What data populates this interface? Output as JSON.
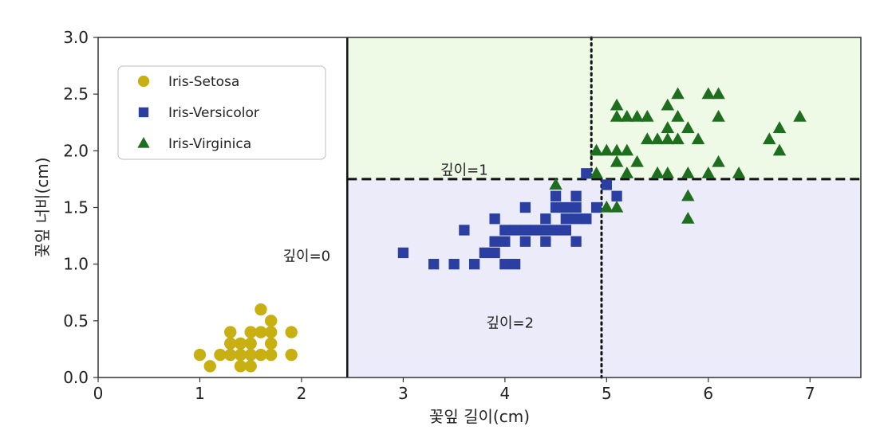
{
  "chart_data": {
    "type": "scatter",
    "xlabel": "꽃잎 길이(cm)",
    "ylabel": "꽃잎 너비(cm)",
    "xlim": [
      0,
      7.5
    ],
    "ylim": [
      0,
      3.0
    ],
    "xticks": [
      0,
      1,
      2,
      3,
      4,
      5,
      6,
      7
    ],
    "yticks": [
      0.0,
      0.5,
      1.0,
      1.5,
      2.0,
      2.5,
      3.0
    ],
    "x_tick_labels": [
      "0",
      "1",
      "2",
      "3",
      "4",
      "5",
      "6",
      "7"
    ],
    "y_tick_labels": [
      "0.0",
      "0.5",
      "1.0",
      "1.5",
      "2.0",
      "2.5",
      "3.0"
    ],
    "grid": false,
    "legend_position": "top-left",
    "regions": [
      {
        "x": [
          0,
          2.45
        ],
        "y": [
          0,
          3.0
        ],
        "color": "#ffffff"
      },
      {
        "x": [
          2.45,
          7.5
        ],
        "y": [
          1.75,
          3.0
        ],
        "color": "#eefae6"
      },
      {
        "x": [
          2.45,
          7.5
        ],
        "y": [
          0,
          1.75
        ],
        "color": "#ecebf9"
      }
    ],
    "boundaries": [
      {
        "orientation": "vertical",
        "value": 2.45,
        "y_range": [
          0,
          3.0
        ],
        "style": "solid"
      },
      {
        "orientation": "horizontal",
        "value": 1.75,
        "x_range": [
          2.45,
          7.5
        ],
        "style": "dashed"
      },
      {
        "orientation": "vertical",
        "value": 4.85,
        "y_range": [
          1.75,
          3.0
        ],
        "style": "dotted"
      },
      {
        "orientation": "vertical",
        "value": 4.95,
        "y_range": [
          0,
          1.75
        ],
        "style": "dotted"
      }
    ],
    "annotations": [
      {
        "text": "깊이=0",
        "x": 2.05,
        "y": 1.07
      },
      {
        "text": "깊이=1",
        "x": 3.6,
        "y": 1.83
      },
      {
        "text": "깊이=2",
        "x": 4.05,
        "y": 0.48
      }
    ],
    "series": [
      {
        "name": "Iris-Setosa",
        "marker": "circle",
        "color": "#c8b012",
        "points": [
          [
            1.0,
            0.2
          ],
          [
            1.1,
            0.1
          ],
          [
            1.2,
            0.2
          ],
          [
            1.3,
            0.2
          ],
          [
            1.3,
            0.3
          ],
          [
            1.3,
            0.4
          ],
          [
            1.4,
            0.1
          ],
          [
            1.4,
            0.2
          ],
          [
            1.4,
            0.3
          ],
          [
            1.5,
            0.1
          ],
          [
            1.5,
            0.2
          ],
          [
            1.5,
            0.3
          ],
          [
            1.5,
            0.4
          ],
          [
            1.6,
            0.2
          ],
          [
            1.6,
            0.4
          ],
          [
            1.6,
            0.6
          ],
          [
            1.7,
            0.2
          ],
          [
            1.7,
            0.3
          ],
          [
            1.7,
            0.4
          ],
          [
            1.7,
            0.5
          ],
          [
            1.9,
            0.2
          ],
          [
            1.9,
            0.4
          ]
        ]
      },
      {
        "name": "Iris-Versicolor",
        "marker": "square",
        "color": "#2b3fa3",
        "points": [
          [
            3.0,
            1.1
          ],
          [
            3.3,
            1.0
          ],
          [
            3.5,
            1.0
          ],
          [
            3.6,
            1.3
          ],
          [
            3.7,
            1.0
          ],
          [
            3.8,
            1.1
          ],
          [
            3.9,
            1.1
          ],
          [
            3.9,
            1.2
          ],
          [
            3.9,
            1.4
          ],
          [
            4.0,
            1.0
          ],
          [
            4.0,
            1.2
          ],
          [
            4.0,
            1.3
          ],
          [
            4.1,
            1.0
          ],
          [
            4.1,
            1.3
          ],
          [
            4.2,
            1.2
          ],
          [
            4.2,
            1.3
          ],
          [
            4.2,
            1.5
          ],
          [
            4.3,
            1.3
          ],
          [
            4.4,
            1.2
          ],
          [
            4.4,
            1.3
          ],
          [
            4.4,
            1.4
          ],
          [
            4.5,
            1.3
          ],
          [
            4.5,
            1.5
          ],
          [
            4.6,
            1.3
          ],
          [
            4.6,
            1.4
          ],
          [
            4.6,
            1.5
          ],
          [
            4.7,
            1.2
          ],
          [
            4.7,
            1.4
          ],
          [
            4.7,
            1.5
          ],
          [
            4.8,
            1.4
          ],
          [
            4.9,
            1.5
          ],
          [
            4.8,
            1.8
          ],
          [
            5.0,
            1.7
          ],
          [
            5.1,
            1.6
          ],
          [
            4.5,
            1.6
          ],
          [
            4.7,
            1.6
          ]
        ]
      },
      {
        "name": "Iris-Virginica",
        "marker": "triangle",
        "color": "#1f6e1f",
        "points": [
          [
            4.5,
            1.7
          ],
          [
            4.9,
            1.8
          ],
          [
            4.9,
            2.0
          ],
          [
            5.0,
            1.5
          ],
          [
            5.0,
            2.0
          ],
          [
            5.1,
            1.5
          ],
          [
            5.1,
            1.9
          ],
          [
            5.1,
            2.0
          ],
          [
            5.1,
            2.3
          ],
          [
            5.1,
            2.4
          ],
          [
            5.2,
            2.0
          ],
          [
            5.2,
            2.3
          ],
          [
            5.3,
            1.9
          ],
          [
            5.3,
            2.3
          ],
          [
            5.4,
            2.1
          ],
          [
            5.4,
            2.3
          ],
          [
            5.5,
            1.8
          ],
          [
            5.5,
            2.1
          ],
          [
            5.6,
            1.8
          ],
          [
            5.6,
            2.1
          ],
          [
            5.6,
            2.2
          ],
          [
            5.6,
            2.4
          ],
          [
            5.7,
            2.3
          ],
          [
            5.7,
            2.5
          ],
          [
            5.8,
            1.4
          ],
          [
            5.8,
            1.8
          ],
          [
            5.8,
            2.2
          ],
          [
            6.0,
            1.8
          ],
          [
            6.0,
            2.5
          ],
          [
            6.1,
            1.9
          ],
          [
            6.1,
            2.3
          ],
          [
            6.1,
            2.5
          ],
          [
            6.3,
            1.8
          ],
          [
            6.6,
            2.1
          ],
          [
            6.7,
            2.0
          ],
          [
            6.7,
            2.2
          ],
          [
            6.9,
            2.3
          ],
          [
            5.8,
            1.6
          ],
          [
            5.9,
            2.1
          ],
          [
            5.5,
            1.8
          ],
          [
            5.7,
            2.1
          ],
          [
            5.2,
            1.8
          ]
        ]
      }
    ]
  }
}
